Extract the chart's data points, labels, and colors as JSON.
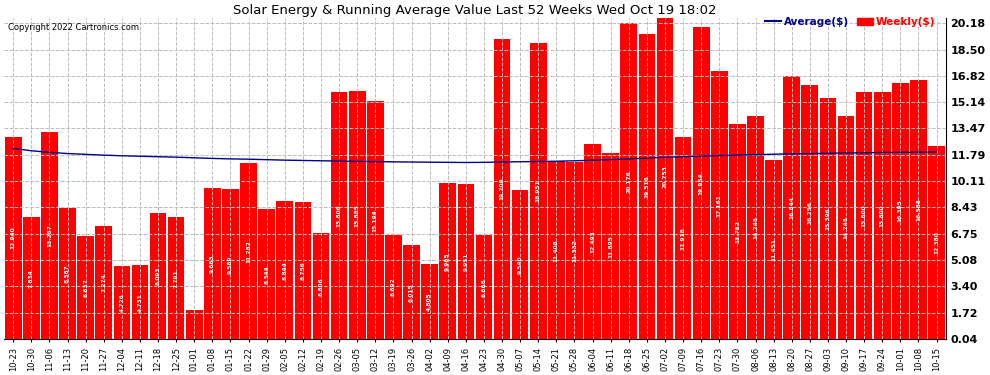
{
  "title": "Solar Energy & Running Average Value Last 52 Weeks Wed Oct 19 18:02",
  "copyright": "Copyright 2022 Cartronics.com",
  "bar_color": "#ff0000",
  "avg_line_color": "#00008b",
  "background_color": "#ffffff",
  "plot_bg_color": "#ffffff",
  "grid_color": "#aaaaaa",
  "categories": [
    "10-23",
    "10-30",
    "11-06",
    "11-13",
    "11-20",
    "11-27",
    "12-04",
    "12-11",
    "12-18",
    "12-25",
    "01-01",
    "01-08",
    "01-15",
    "01-22",
    "01-29",
    "02-05",
    "02-12",
    "02-19",
    "02-26",
    "03-05",
    "03-12",
    "03-19",
    "03-26",
    "04-02",
    "04-09",
    "04-16",
    "04-23",
    "04-30",
    "05-07",
    "05-14",
    "05-21",
    "05-28",
    "06-04",
    "06-11",
    "06-18",
    "06-25",
    "07-02",
    "07-09",
    "07-16",
    "07-23",
    "07-30",
    "08-06",
    "08-13",
    "08-20",
    "08-27",
    "09-03",
    "09-10",
    "09-17",
    "09-24",
    "10-01",
    "10-08",
    "10-15"
  ],
  "weekly_values": [
    12.94,
    7.834,
    13.257,
    8.387,
    6.637,
    7.274,
    4.726,
    4.731,
    8.093,
    7.791,
    1.883,
    9.663,
    9.589,
    11.282,
    8.344,
    8.844,
    8.756,
    6.806,
    15.806,
    15.885,
    15.194,
    6.692,
    6.015,
    4.805,
    9.965,
    9.951,
    6.668,
    19.2,
    9.54,
    18.951,
    11.408,
    11.332,
    12.493,
    11.895,
    20.176,
    19.516,
    20.753,
    12.918,
    19.954,
    17.161,
    13.752,
    14.248,
    11.451,
    16.844,
    16.256,
    15.396,
    14.248,
    15.8,
    15.8,
    16.395,
    16.588,
    12.38
  ],
  "avg_values": [
    12.2,
    12.05,
    11.95,
    11.87,
    11.82,
    11.77,
    11.73,
    11.7,
    11.67,
    11.64,
    11.6,
    11.56,
    11.53,
    11.51,
    11.48,
    11.45,
    11.43,
    11.41,
    11.39,
    11.37,
    11.36,
    11.34,
    11.33,
    11.32,
    11.31,
    11.3,
    11.31,
    11.33,
    11.35,
    11.36,
    11.38,
    11.41,
    11.44,
    11.49,
    11.53,
    11.58,
    11.63,
    11.67,
    11.71,
    11.74,
    11.77,
    11.8,
    11.83,
    11.85,
    11.87,
    11.89,
    11.91,
    11.92,
    11.94,
    11.95,
    11.96,
    11.97
  ],
  "yticks": [
    0.04,
    1.72,
    3.4,
    5.08,
    6.75,
    8.43,
    10.11,
    11.79,
    13.47,
    15.14,
    16.82,
    18.5,
    20.18
  ],
  "ylim": [
    0.04,
    20.5
  ],
  "legend_avg_label": "Average($)",
  "legend_weekly_label": "Weekly($)"
}
